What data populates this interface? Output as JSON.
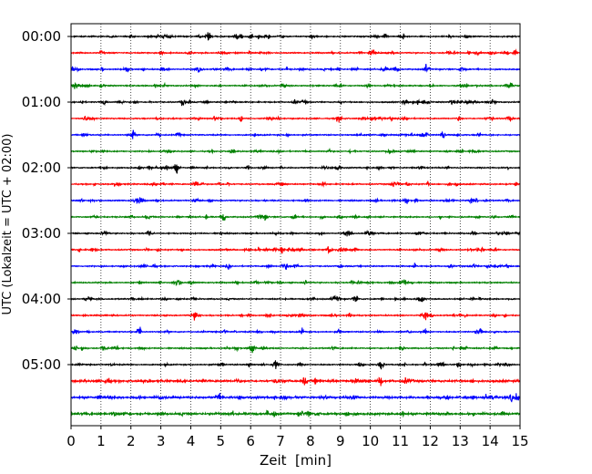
{
  "chart_data": {
    "type": "line",
    "subtype": "helicorder",
    "xlabel": "Zeit  [min]",
    "ylabel": "UTC (Lokalzeit = UTC + 02:00)",
    "xlim": [
      0,
      15
    ],
    "x_ticks": [
      "0",
      "1",
      "2",
      "3",
      "4",
      "5",
      "6",
      "7",
      "8",
      "9",
      "10",
      "11",
      "12",
      "13",
      "14",
      "15"
    ],
    "x_grid": "dotted vertical at each minute",
    "y_tick_labels": [
      "00:00",
      "01:00",
      "02:00",
      "03:00",
      "04:00",
      "05:00"
    ],
    "trace_interval_minutes": 15,
    "traces": [
      "00:00",
      "00:15",
      "00:30",
      "00:45",
      "01:00",
      "01:15",
      "01:30",
      "01:45",
      "02:00",
      "02:15",
      "02:30",
      "02:45",
      "03:00",
      "03:15",
      "03:30",
      "03:45",
      "04:00",
      "04:15",
      "04:30",
      "04:45",
      "05:00",
      "05:15",
      "05:30",
      "05:45"
    ],
    "color_cycle": [
      "#000000",
      "#ff0000",
      "#0000ff",
      "#008000"
    ],
    "notable_events": [
      {
        "trace": "02:00",
        "minute": 3.5
      },
      {
        "trace": "02:45",
        "minute": 5.1
      },
      {
        "trace": "04:30",
        "minute": 2.3
      },
      {
        "trace": "05:15",
        "minute": 7.8
      },
      {
        "trace": "05:30",
        "minute": 14.9
      },
      {
        "trace": "05:45",
        "minute": 9.2
      }
    ]
  }
}
